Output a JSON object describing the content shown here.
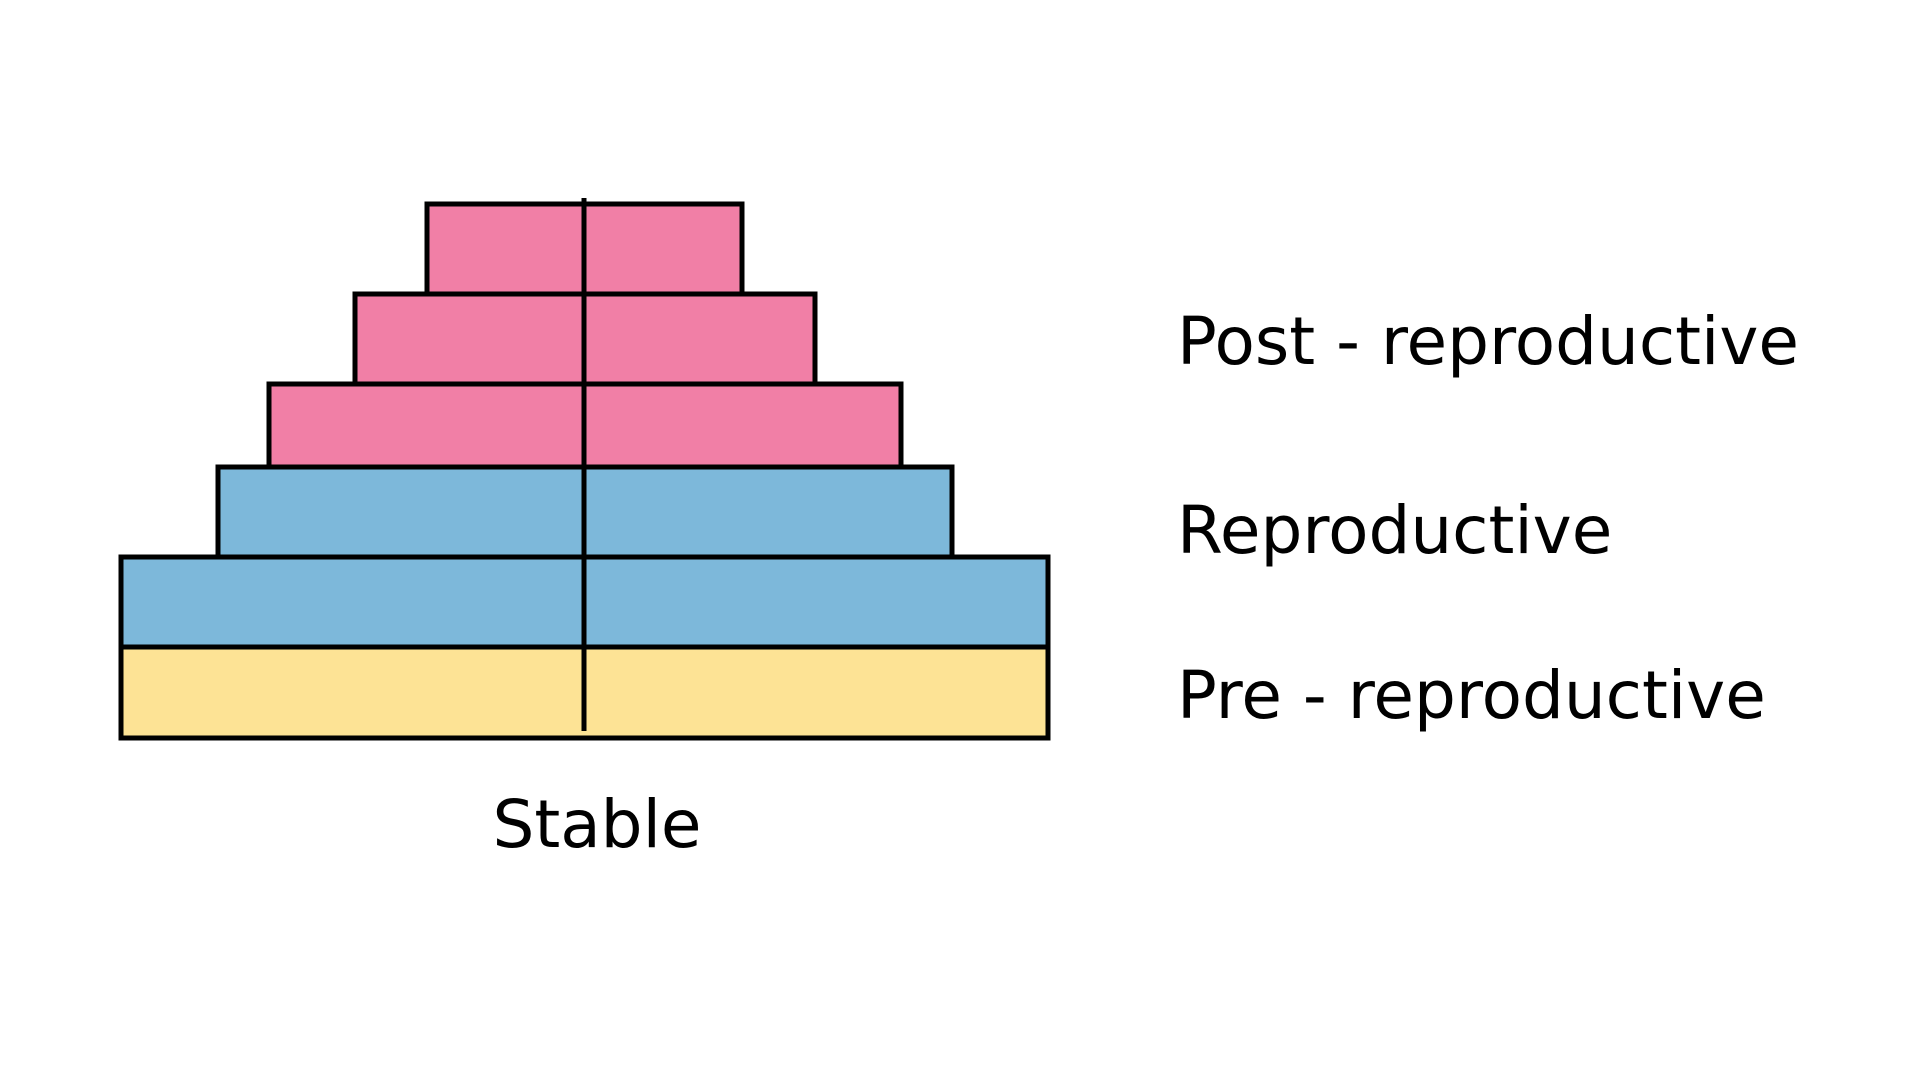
{
  "diagram": {
    "caption": "Stable",
    "groups": [
      {
        "label": "Post - reproductive",
        "color": "#f17fa6"
      },
      {
        "label": "Reproductive",
        "color": "#7db8da"
      },
      {
        "label": "Pre - reproductive",
        "color": "#fde395"
      }
    ],
    "layers": [
      {
        "group": "Post - reproductive",
        "color": "#f17fa6"
      },
      {
        "group": "Post - reproductive",
        "color": "#f17fa6"
      },
      {
        "group": "Post - reproductive",
        "color": "#f17fa6"
      },
      {
        "group": "Reproductive",
        "color": "#7db8da"
      },
      {
        "group": "Reproductive",
        "color": "#7db8da"
      },
      {
        "group": "Pre - reproductive",
        "color": "#fde395"
      }
    ]
  }
}
